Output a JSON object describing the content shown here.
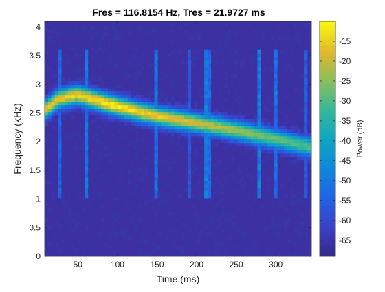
{
  "chart_data": {
    "type": "heatmap",
    "title": "Fres = 116.8154 Hz, Tres = 21.9727 ms",
    "xlabel": "Time (ms)",
    "ylabel": "Frequency (kHz)",
    "xlim": [
      8,
      345
    ],
    "ylim": [
      0,
      4.1
    ],
    "xticks": [
      50,
      100,
      150,
      200,
      250,
      300
    ],
    "yticks": [
      0,
      0.5,
      1,
      1.5,
      2,
      2.5,
      3,
      3.5,
      4
    ],
    "colormap": "parula",
    "colorbar": {
      "label": "Power (dB)",
      "range": [
        -69,
        -10
      ],
      "ticks": [
        -15,
        -20,
        -25,
        -30,
        -35,
        -40,
        -45,
        -50,
        -55,
        -60,
        -65
      ]
    },
    "ridge": {
      "description_points": [
        {
          "time_ms": 8,
          "freq_khz": 2.55
        },
        {
          "time_ms": 25,
          "freq_khz": 2.75
        },
        {
          "time_ms": 50,
          "freq_khz": 2.82
        },
        {
          "time_ms": 100,
          "freq_khz": 2.62
        },
        {
          "time_ms": 150,
          "freq_khz": 2.45
        },
        {
          "time_ms": 200,
          "freq_khz": 2.33
        },
        {
          "time_ms": 250,
          "freq_khz": 2.2
        },
        {
          "time_ms": 300,
          "freq_khz": 2.05
        },
        {
          "time_ms": 345,
          "freq_khz": 1.9
        }
      ],
      "peak_power_db": -11,
      "background_power_db": -67
    },
    "grid": false,
    "colors": {
      "background": "#3c30a3",
      "ridge_peak": "#f9fa14"
    }
  }
}
